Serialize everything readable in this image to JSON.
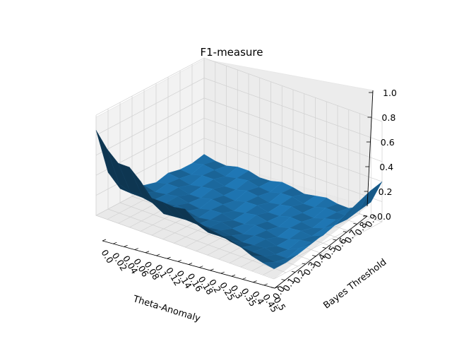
{
  "chart_data": {
    "type": "surface",
    "title": "F1-measure",
    "xlabel": "Theta-Anomaly",
    "ylabel": "Bayes Threshold",
    "zlabel": "",
    "x_ticks": [
      "0.0",
      "0.02",
      "0.04",
      "0.06",
      "0.08",
      "0.1",
      "0.12",
      "0.14",
      "0.16",
      "0.18",
      "0.2",
      "0.25",
      "0.3",
      "0.35",
      "0.4",
      "0.45",
      "0.5"
    ],
    "y_ticks": [
      "0.0",
      "0.1",
      "0.2",
      "0.3",
      "0.4",
      "0.5",
      "0.6",
      "0.7",
      "0.8",
      "0.9"
    ],
    "z_ticks": [
      "0.0",
      "0.2",
      "0.4",
      "0.6",
      "0.8",
      "1.0"
    ],
    "zlim": [
      0,
      1
    ],
    "grid": true,
    "surface_color": "#1f77b4",
    "values_by_theta_at_bayes_threshold_0": [
      0.85,
      0.7,
      0.6,
      0.6,
      0.5,
      0.37,
      0.37,
      0.36,
      0.38,
      0.3,
      0.27,
      0.25,
      0.22,
      0.2,
      0.15,
      0.12,
      0.1
    ],
    "values_by_bayes_threshold_at_theta_0.5": [
      0.1,
      0.1,
      0.12,
      0.15,
      0.18,
      0.22,
      0.27,
      0.32,
      0.37,
      0.4
    ]
  }
}
